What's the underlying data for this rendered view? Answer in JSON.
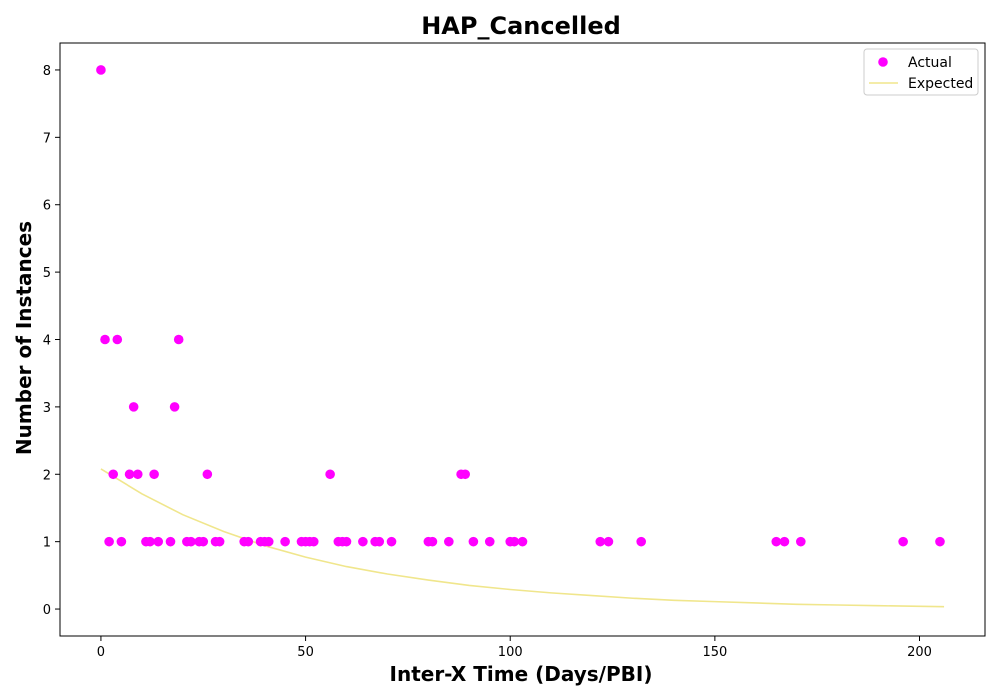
{
  "chart_data": {
    "type": "scatter",
    "title": "HAP_Cancelled",
    "xlabel": "Inter-X Time (Days/PBI)",
    "ylabel": "Number of Instances",
    "xlim": [
      -10,
      216
    ],
    "ylim": [
      -0.4,
      8.4
    ],
    "xticks": [
      0,
      50,
      100,
      150,
      200
    ],
    "yticks": [
      0,
      1,
      2,
      3,
      4,
      5,
      6,
      7,
      8
    ],
    "grid": false,
    "legend_position": "top-right",
    "series": [
      {
        "name": "Actual",
        "kind": "scatter",
        "color": "#ff00ff",
        "points": [
          [
            0,
            8
          ],
          [
            1,
            4
          ],
          [
            2,
            1
          ],
          [
            3,
            2
          ],
          [
            4,
            4
          ],
          [
            5,
            1
          ],
          [
            7,
            2
          ],
          [
            8,
            3
          ],
          [
            9,
            2
          ],
          [
            11,
            1
          ],
          [
            12,
            1
          ],
          [
            13,
            2
          ],
          [
            14,
            1
          ],
          [
            17,
            1
          ],
          [
            18,
            3
          ],
          [
            19,
            4
          ],
          [
            21,
            1
          ],
          [
            22,
            1
          ],
          [
            24,
            1
          ],
          [
            25,
            1
          ],
          [
            26,
            2
          ],
          [
            28,
            1
          ],
          [
            29,
            1
          ],
          [
            35,
            1
          ],
          [
            36,
            1
          ],
          [
            39,
            1
          ],
          [
            40,
            1
          ],
          [
            41,
            1
          ],
          [
            45,
            1
          ],
          [
            49,
            1
          ],
          [
            50,
            1
          ],
          [
            51,
            1
          ],
          [
            52,
            1
          ],
          [
            56,
            2
          ],
          [
            58,
            1
          ],
          [
            59,
            1
          ],
          [
            60,
            1
          ],
          [
            64,
            1
          ],
          [
            67,
            1
          ],
          [
            68,
            1
          ],
          [
            71,
            1
          ],
          [
            80,
            1
          ],
          [
            81,
            1
          ],
          [
            85,
            1
          ],
          [
            88,
            2
          ],
          [
            89,
            2
          ],
          [
            91,
            1
          ],
          [
            95,
            1
          ],
          [
            100,
            1
          ],
          [
            101,
            1
          ],
          [
            103,
            1
          ],
          [
            122,
            1
          ],
          [
            124,
            1
          ],
          [
            132,
            1
          ],
          [
            165,
            1
          ],
          [
            167,
            1
          ],
          [
            171,
            1
          ],
          [
            196,
            1
          ],
          [
            205,
            1
          ]
        ]
      },
      {
        "name": "Expected",
        "kind": "line",
        "color": "#f0e68c",
        "x": [
          0,
          10,
          20,
          30,
          40,
          50,
          60,
          70,
          80,
          90,
          100,
          110,
          120,
          130,
          140,
          150,
          160,
          170,
          180,
          190,
          200,
          206
        ],
        "y": [
          2.08,
          1.71,
          1.4,
          1.15,
          0.94,
          0.77,
          0.63,
          0.52,
          0.43,
          0.35,
          0.29,
          0.24,
          0.2,
          0.16,
          0.13,
          0.11,
          0.09,
          0.07,
          0.06,
          0.05,
          0.04,
          0.035
        ]
      }
    ]
  }
}
